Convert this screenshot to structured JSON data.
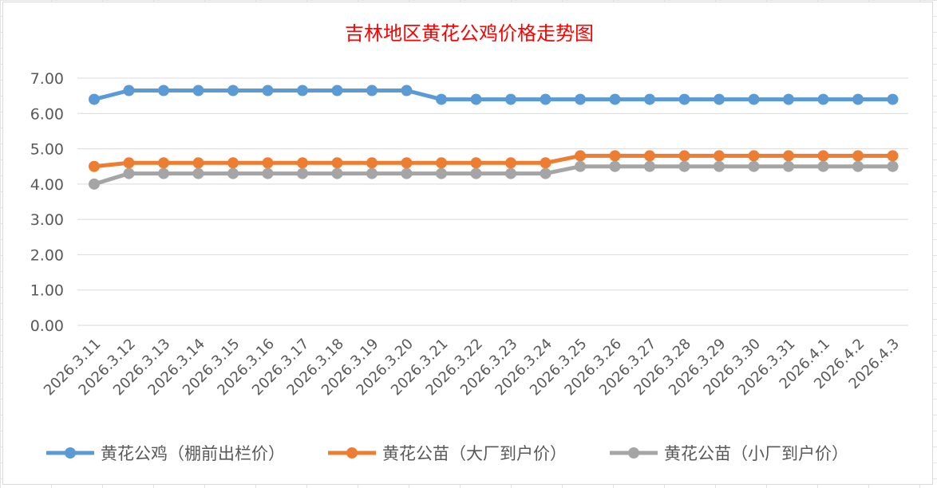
{
  "chart_data": {
    "type": "line",
    "title": "吉林地区黄花公鸡价格走势图",
    "xlabel": "",
    "ylabel": "",
    "ylim": [
      0,
      7
    ],
    "yticks": [
      "0.00",
      "1.00",
      "2.00",
      "3.00",
      "4.00",
      "5.00",
      "6.00",
      "7.00"
    ],
    "grid": true,
    "legend_position": "bottom",
    "categories": [
      "2026.3.11",
      "2026.3.12",
      "2026.3.13",
      "2026.3.14",
      "2026.3.15",
      "2026.3.16",
      "2026.3.17",
      "2026.3.18",
      "2026.3.19",
      "2026.3.20",
      "2026.3.21",
      "2026.3.22",
      "2026.3.23",
      "2026.3.24",
      "2026.3.25",
      "2026.3.26",
      "2026.3.27",
      "2026.3.28",
      "2026.3.29",
      "2026.3.30",
      "2026.3.31",
      "2026.4.1",
      "2026.4.2",
      "2026.4.3"
    ],
    "series": [
      {
        "name": "黄花公鸡（棚前出栏价）",
        "color": "#5b9bd5",
        "values": [
          6.4,
          6.65,
          6.65,
          6.65,
          6.65,
          6.65,
          6.65,
          6.65,
          6.65,
          6.65,
          6.4,
          6.4,
          6.4,
          6.4,
          6.4,
          6.4,
          6.4,
          6.4,
          6.4,
          6.4,
          6.4,
          6.4,
          6.4,
          6.4
        ]
      },
      {
        "name": "黄花公苗（大厂到户价）",
        "color": "#ed7d31",
        "values": [
          4.5,
          4.6,
          4.6,
          4.6,
          4.6,
          4.6,
          4.6,
          4.6,
          4.6,
          4.6,
          4.6,
          4.6,
          4.6,
          4.6,
          4.8,
          4.8,
          4.8,
          4.8,
          4.8,
          4.8,
          4.8,
          4.8,
          4.8,
          4.8
        ]
      },
      {
        "name": "黄花公苗（小厂到户价）",
        "color": "#a5a5a5",
        "values": [
          4.0,
          4.3,
          4.3,
          4.3,
          4.3,
          4.3,
          4.3,
          4.3,
          4.3,
          4.3,
          4.3,
          4.3,
          4.3,
          4.3,
          4.5,
          4.5,
          4.5,
          4.5,
          4.5,
          4.5,
          4.5,
          4.5,
          4.5,
          4.5
        ]
      }
    ]
  }
}
